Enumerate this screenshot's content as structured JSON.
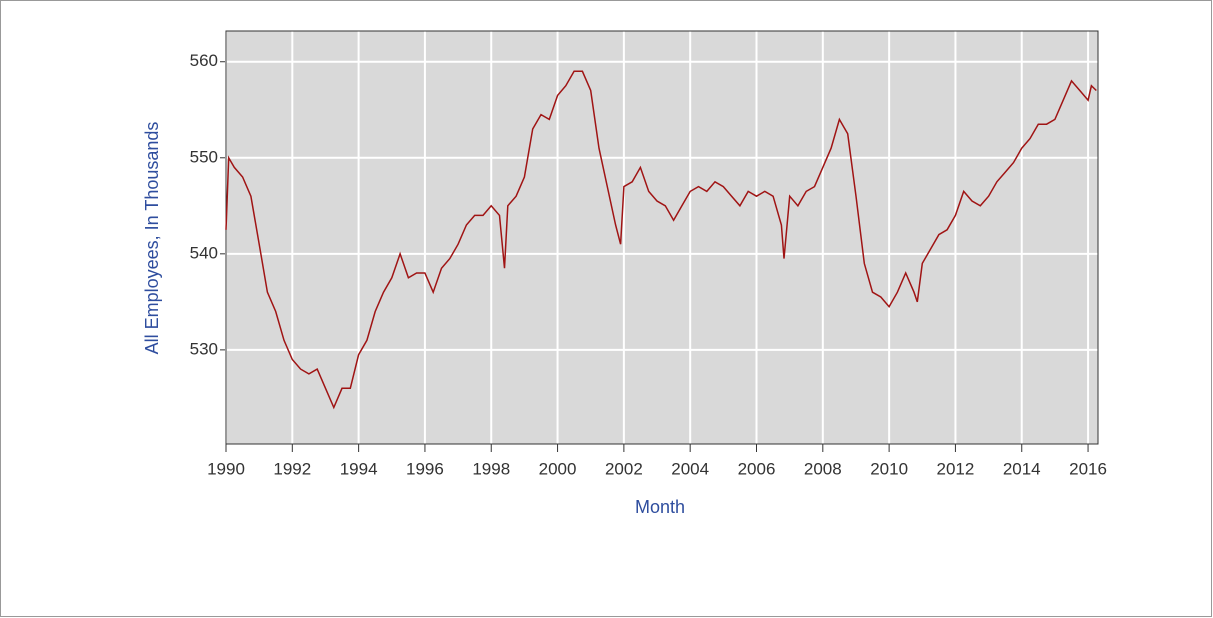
{
  "chart_data": {
    "type": "line",
    "xlabel": "Month",
    "ylabel": "All Employees, In Thousands",
    "color": "#a01414",
    "grid": true,
    "xlim": [
      1990,
      2016.3
    ],
    "xticks": [
      1990,
      1992,
      1994,
      1996,
      1998,
      2000,
      2002,
      2004,
      2006,
      2008,
      2010,
      2012,
      2014,
      2016
    ],
    "ylim": [
      520.2,
      563.2
    ],
    "yticks": [
      530,
      540,
      550,
      560
    ],
    "x": [
      1990.0,
      1990.08,
      1990.25,
      1990.5,
      1990.75,
      1991.0,
      1991.25,
      1991.5,
      1991.75,
      1992.0,
      1992.25,
      1992.5,
      1992.75,
      1993.0,
      1993.25,
      1993.5,
      1993.75,
      1994.0,
      1994.25,
      1994.5,
      1994.75,
      1995.0,
      1995.25,
      1995.5,
      1995.75,
      1996.0,
      1996.25,
      1996.5,
      1996.75,
      1997.0,
      1997.25,
      1997.5,
      1997.75,
      1998.0,
      1998.25,
      1998.4,
      1998.5,
      1998.75,
      1999.0,
      1999.25,
      1999.5,
      1999.75,
      2000.0,
      2000.25,
      2000.5,
      2000.75,
      2001.0,
      2001.25,
      2001.5,
      2001.75,
      2001.9,
      2002.0,
      2002.25,
      2002.5,
      2002.75,
      2003.0,
      2003.25,
      2003.5,
      2003.75,
      2004.0,
      2004.25,
      2004.5,
      2004.75,
      2005.0,
      2005.25,
      2005.5,
      2005.75,
      2006.0,
      2006.25,
      2006.5,
      2006.75,
      2006.83,
      2007.0,
      2007.25,
      2007.5,
      2007.75,
      2008.0,
      2008.25,
      2008.5,
      2008.75,
      2009.0,
      2009.25,
      2009.5,
      2009.75,
      2010.0,
      2010.25,
      2010.5,
      2010.75,
      2010.85,
      2011.0,
      2011.25,
      2011.5,
      2011.75,
      2012.0,
      2012.25,
      2012.5,
      2012.75,
      2013.0,
      2013.25,
      2013.5,
      2013.75,
      2014.0,
      2014.25,
      2014.5,
      2014.75,
      2015.0,
      2015.25,
      2015.5,
      2015.75,
      2016.0,
      2016.1,
      2016.25
    ],
    "values": [
      542.5,
      550,
      549,
      548,
      546,
      541,
      536,
      534,
      531,
      529,
      528,
      527.5,
      528,
      526,
      524,
      526,
      526,
      529.5,
      531,
      534,
      536,
      537.5,
      540,
      537.5,
      538,
      538,
      536,
      538.5,
      539.5,
      541,
      543,
      544,
      544,
      545,
      544,
      538.5,
      545,
      546,
      548,
      553,
      554.5,
      554,
      556.5,
      557.5,
      559,
      559,
      557,
      551,
      547,
      543,
      541,
      547,
      547.5,
      549,
      546.5,
      545.5,
      545,
      543.5,
      545,
      546.5,
      547,
      546.5,
      547.5,
      547,
      546,
      545,
      546.5,
      546,
      546.5,
      546,
      543,
      539.5,
      546,
      545,
      546.5,
      547,
      549,
      551,
      554,
      552.5,
      546,
      539,
      536,
      535.5,
      534.5,
      536,
      538,
      536,
      535,
      539,
      540.5,
      542,
      542.5,
      544,
      546.5,
      545.5,
      545,
      546,
      547.5,
      548.5,
      549.5,
      551,
      552,
      553.5,
      553.5,
      554,
      556,
      558,
      557,
      556,
      557.5,
      557
    ]
  }
}
